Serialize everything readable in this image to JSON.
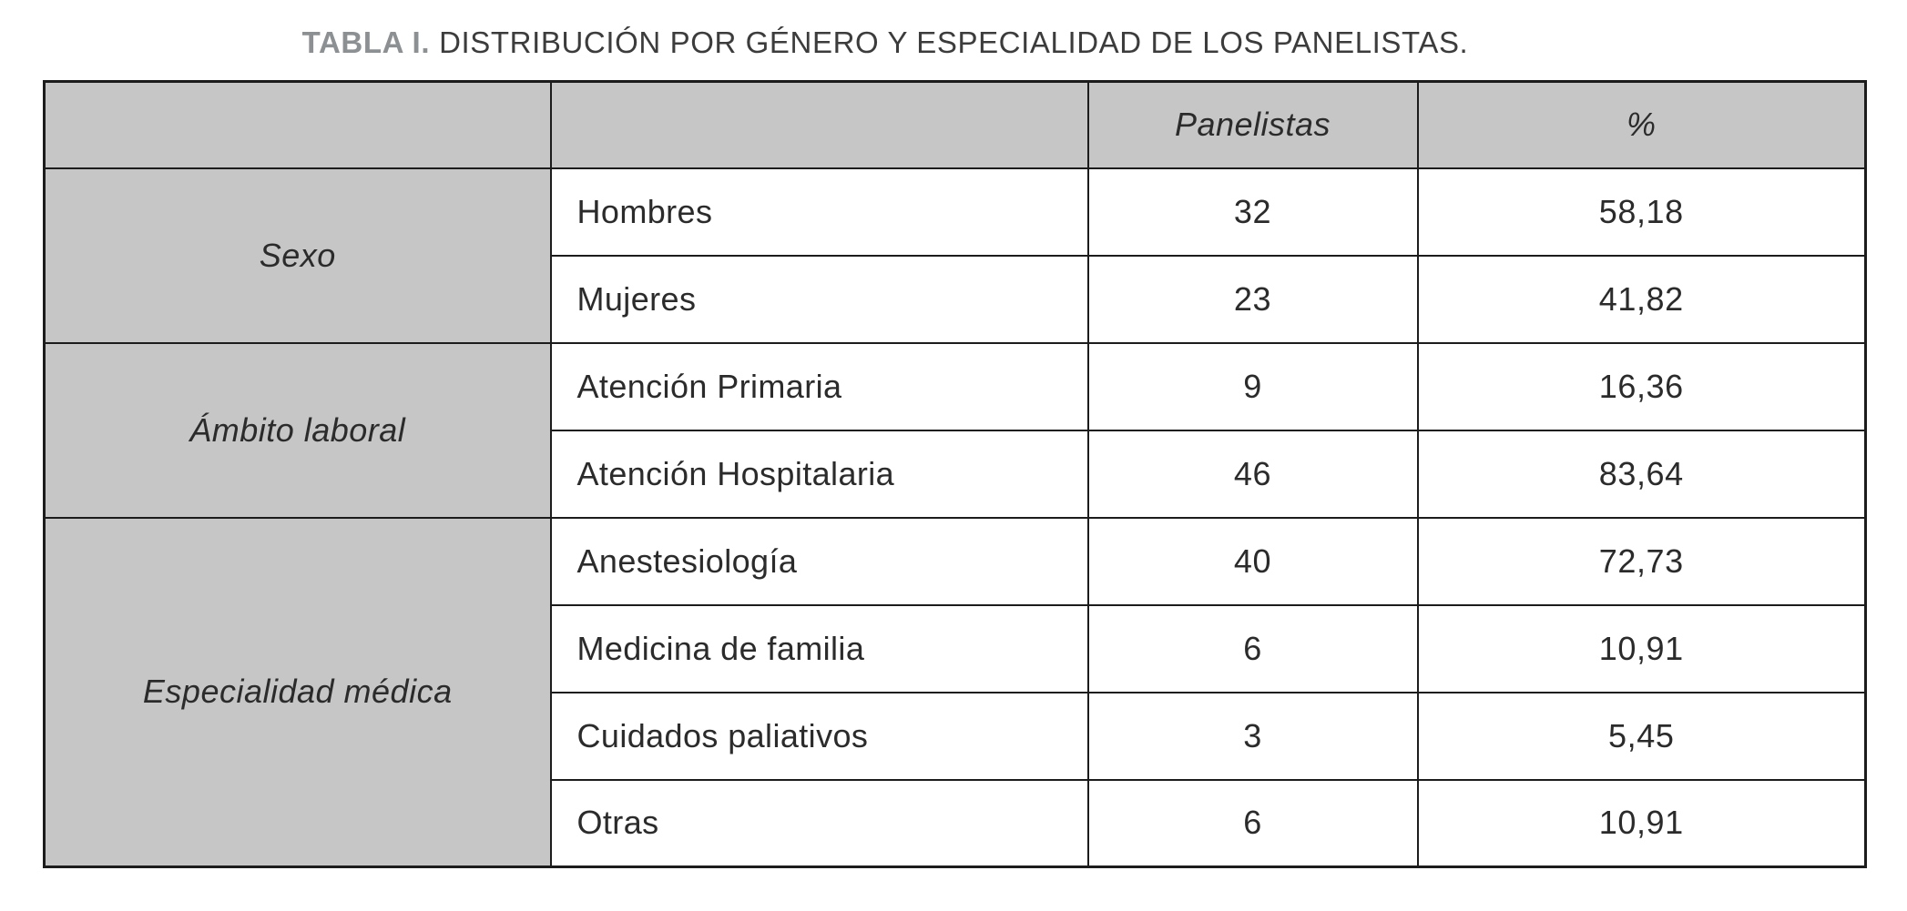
{
  "caption": {
    "label": "TABLA I.",
    "text": "DISTRIBUCIÓN POR GÉNERO Y ESPECIALIDAD DE LOS PANELISTAS."
  },
  "table": {
    "headers": [
      "",
      "",
      "Panelistas",
      "%"
    ],
    "groups": [
      {
        "category": "Sexo",
        "rows": [
          {
            "label": "Hombres",
            "panelistas": "32",
            "pct": "58,18"
          },
          {
            "label": "Mujeres",
            "panelistas": "23",
            "pct": "41,82"
          }
        ]
      },
      {
        "category": "Ámbito laboral",
        "rows": [
          {
            "label": "Atención Primaria",
            "panelistas": "9",
            "pct": "16,36"
          },
          {
            "label": "Atención Hospitalaria",
            "panelistas": "46",
            "pct": "83,64"
          }
        ]
      },
      {
        "category": "Especialidad médica",
        "rows": [
          {
            "label": "Anestesiología",
            "panelistas": "40",
            "pct": "72,73"
          },
          {
            "label": "Medicina de familia",
            "panelistas": "6",
            "pct": "10,91"
          },
          {
            "label": "Cuidados paliativos",
            "panelistas": "3",
            "pct": "5,45"
          },
          {
            "label": "Otras",
            "panelistas": "6",
            "pct": "10,91"
          }
        ]
      }
    ]
  },
  "colors": {
    "header_bg": "#c6c6c7",
    "border": "#1c1c1c",
    "caption_accent": "#8d9093",
    "text": "#2b2b2b",
    "background": "#ffffff"
  }
}
